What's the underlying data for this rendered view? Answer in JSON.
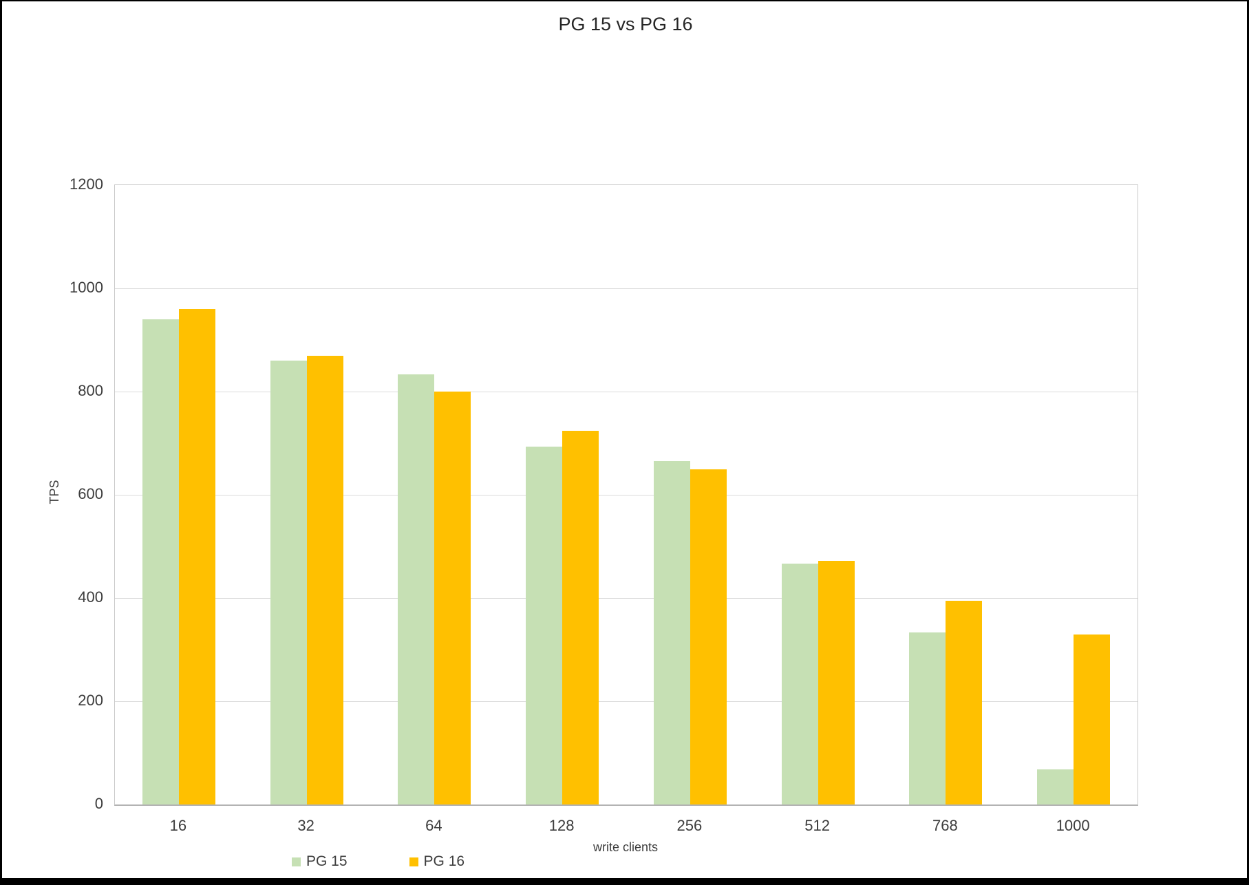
{
  "chart_data": {
    "type": "bar",
    "title": "PG 15 vs PG 16",
    "categories": [
      "16",
      "32",
      "64",
      "128",
      "256",
      "512",
      "768",
      "1000"
    ],
    "series": [
      {
        "name": "PG 15",
        "color": "#c6e0b4",
        "values": [
          940,
          860,
          833,
          693,
          665,
          467,
          333,
          68
        ]
      },
      {
        "name": "PG 16",
        "color": "#ffc000",
        "values": [
          960,
          870,
          800,
          724,
          650,
          472,
          395,
          330
        ]
      }
    ],
    "xlabel": "write clients",
    "ylabel": "TPS",
    "ylim": [
      0,
      1200
    ],
    "yticks": [
      0,
      200,
      400,
      600,
      800,
      1000,
      1200
    ],
    "grid": true,
    "legend_position": "bottom"
  },
  "colors": {
    "pg15": "#c6e0b4",
    "pg16": "#ffc000",
    "gridline": "#dadada",
    "axis_line": "#b3b3b3",
    "text": "#3d3d3d",
    "frame": "#000000",
    "background": "#ffffff"
  }
}
